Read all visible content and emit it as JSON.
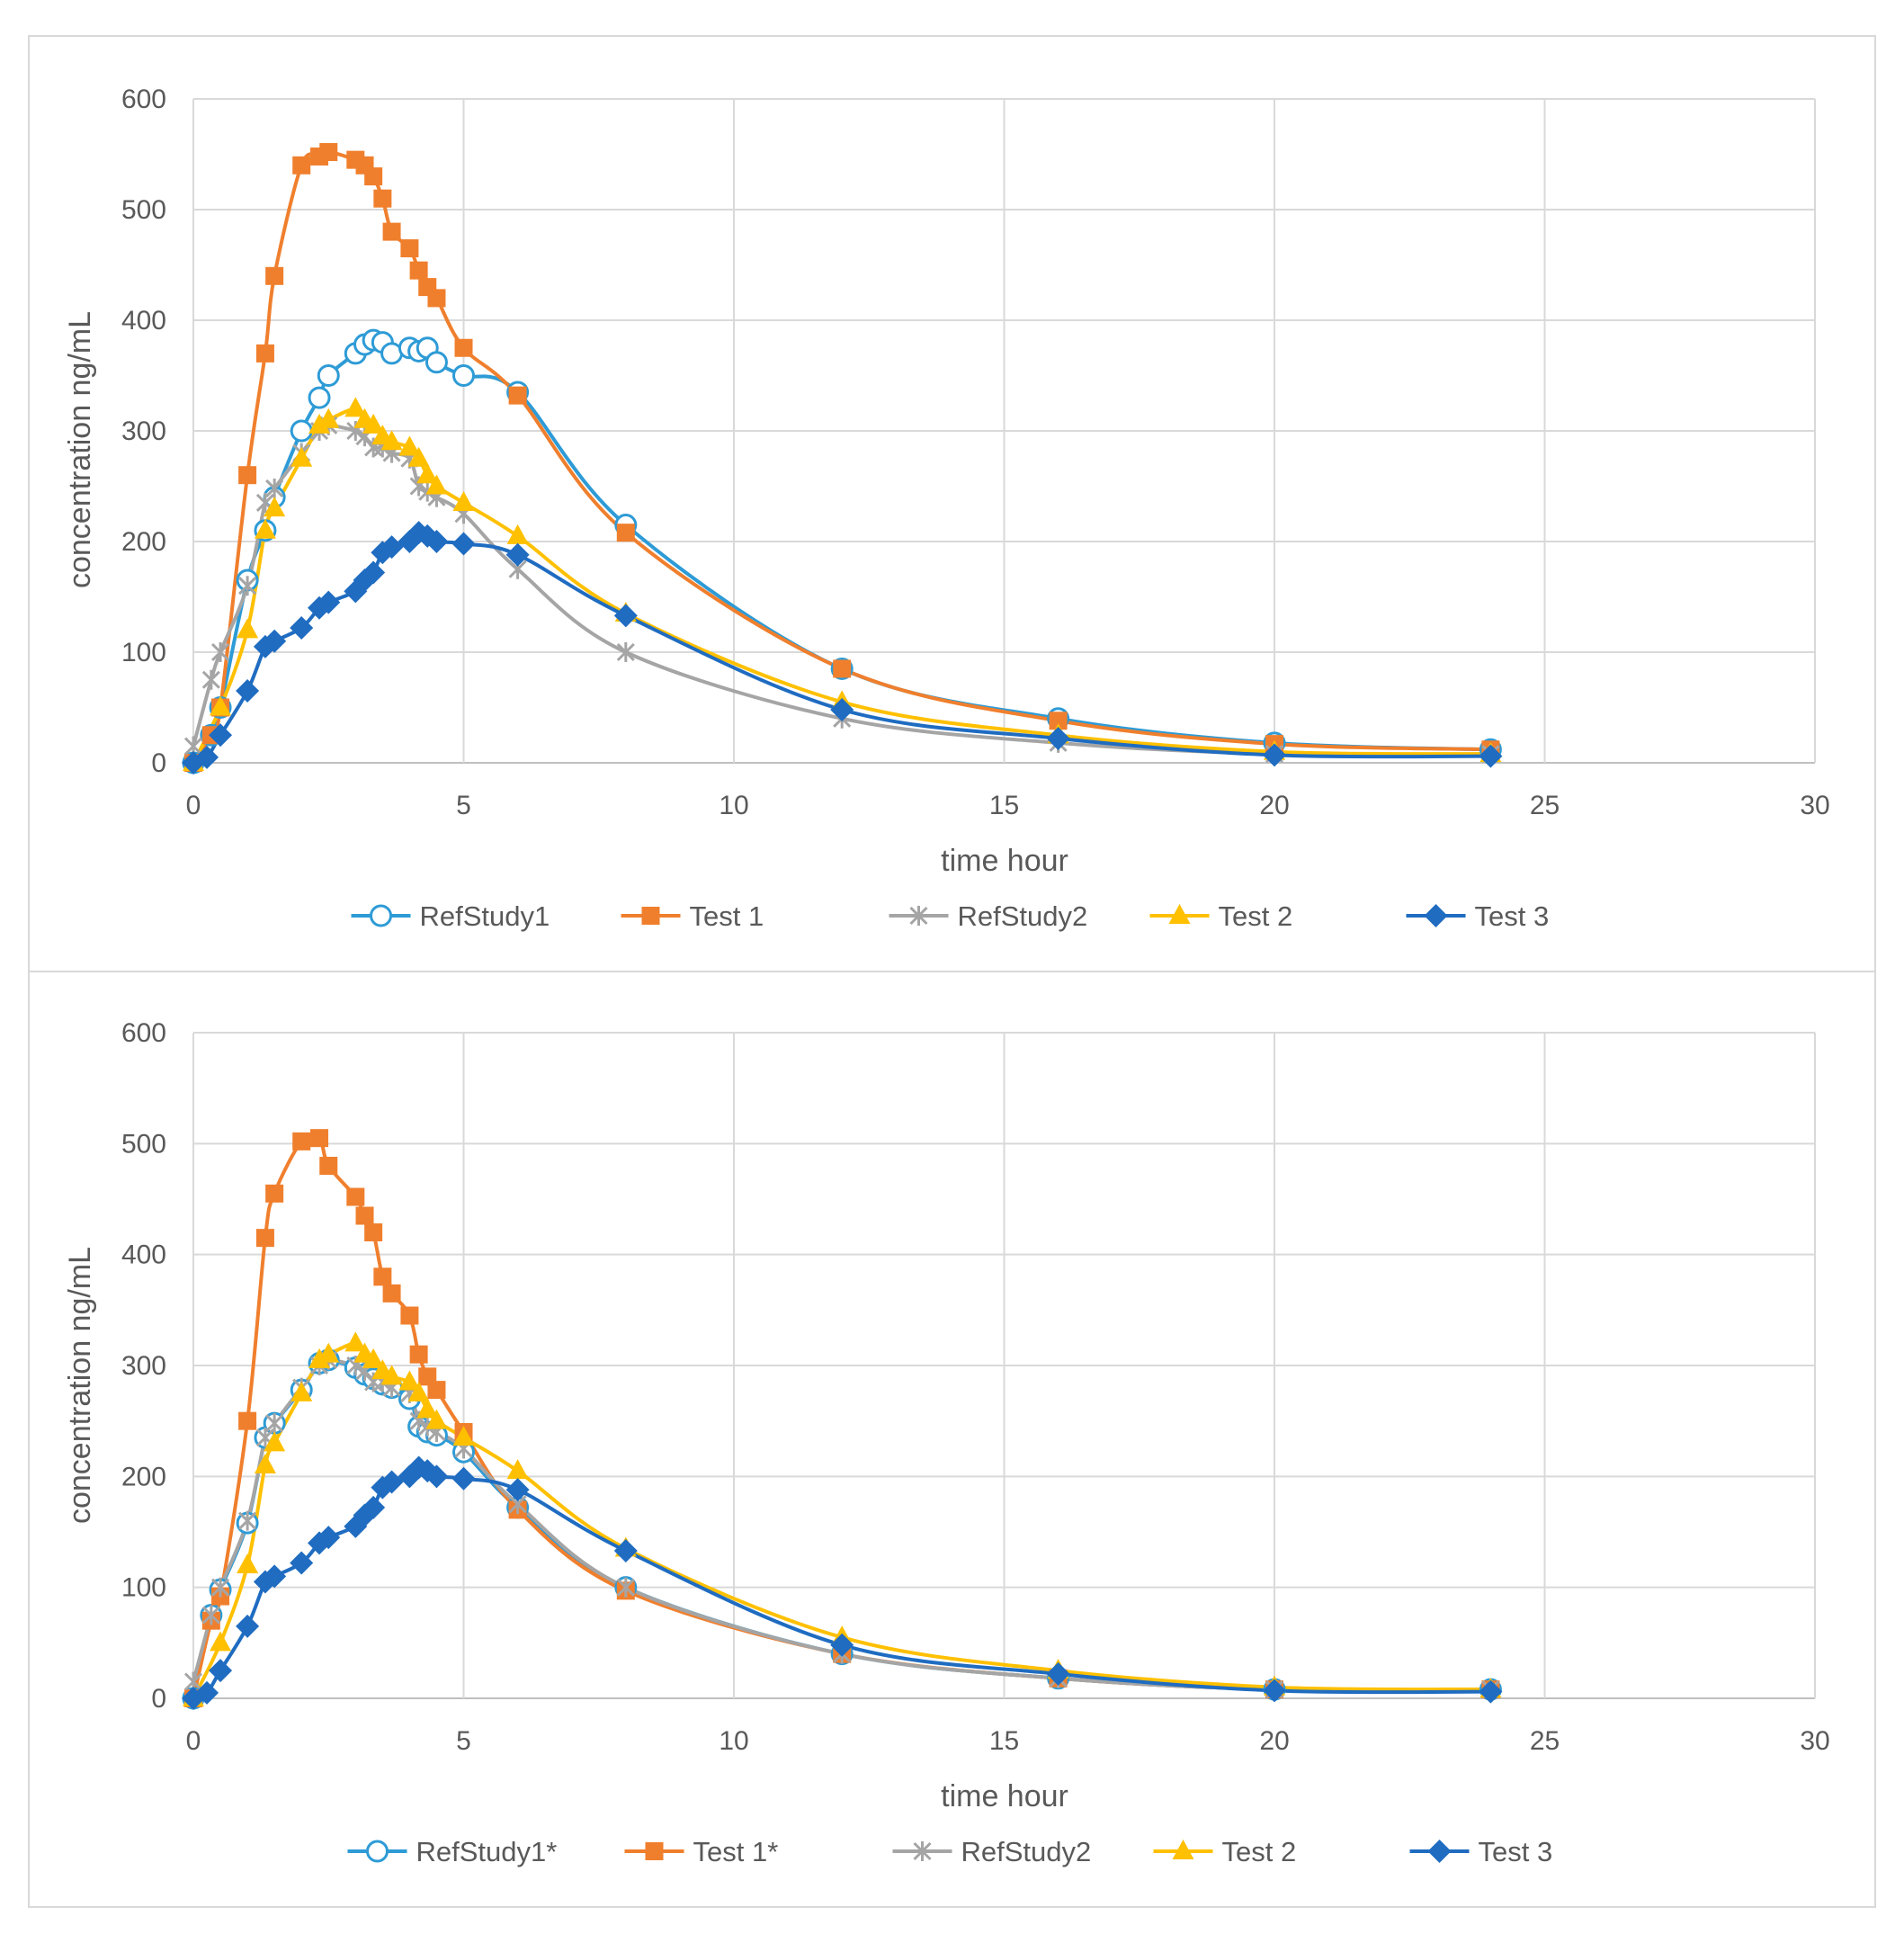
{
  "chart_data": [
    {
      "type": "line",
      "title": "",
      "xlabel": "time hour",
      "ylabel": "concentration ng/mL",
      "xlim": [
        0,
        30
      ],
      "ylim": [
        0,
        600
      ],
      "xticks": [
        0,
        5,
        10,
        15,
        20,
        25,
        30
      ],
      "yticks": [
        0,
        100,
        200,
        300,
        400,
        500,
        600
      ],
      "grid": true,
      "legend_position": "bottom",
      "series": [
        {
          "name": "RefStudy1",
          "color": "#2E9BD6",
          "marker": "circle-open",
          "points": [
            [
              0,
              0
            ],
            [
              0.33,
              25
            ],
            [
              0.5,
              50
            ],
            [
              1,
              165
            ],
            [
              1.33,
              210
            ],
            [
              1.5,
              240
            ],
            [
              2,
              300
            ],
            [
              2.33,
              330
            ],
            [
              2.5,
              350
            ],
            [
              3,
              370
            ],
            [
              3.17,
              378
            ],
            [
              3.33,
              382
            ],
            [
              3.5,
              380
            ],
            [
              3.67,
              370
            ],
            [
              4,
              375
            ],
            [
              4.17,
              372
            ],
            [
              4.33,
              375
            ],
            [
              4.5,
              362
            ],
            [
              5,
              350
            ],
            [
              6,
              335
            ],
            [
              8,
              215
            ],
            [
              12,
              85
            ],
            [
              16,
              40
            ],
            [
              20,
              18
            ],
            [
              24,
              12
            ]
          ]
        },
        {
          "name": "Test 1",
          "color": "#F07F2D",
          "marker": "square",
          "points": [
            [
              0,
              0
            ],
            [
              0.33,
              25
            ],
            [
              0.5,
              50
            ],
            [
              1,
              260
            ],
            [
              1.33,
              370
            ],
            [
              1.5,
              440
            ],
            [
              2,
              540
            ],
            [
              2.33,
              548
            ],
            [
              2.5,
              552
            ],
            [
              3,
              545
            ],
            [
              3.17,
              540
            ],
            [
              3.33,
              530
            ],
            [
              3.5,
              510
            ],
            [
              3.67,
              480
            ],
            [
              4,
              465
            ],
            [
              4.17,
              445
            ],
            [
              4.33,
              430
            ],
            [
              4.5,
              420
            ],
            [
              5,
              375
            ],
            [
              6,
              332
            ],
            [
              8,
              208
            ],
            [
              12,
              85
            ],
            [
              16,
              38
            ],
            [
              20,
              17
            ],
            [
              24,
              12
            ]
          ]
        },
        {
          "name": "RefStudy2",
          "color": "#A5A5A5",
          "marker": "star",
          "points": [
            [
              0,
              15
            ],
            [
              0.33,
              75
            ],
            [
              0.5,
              100
            ],
            [
              1,
              160
            ],
            [
              1.33,
              235
            ],
            [
              1.5,
              248
            ],
            [
              2,
              280
            ],
            [
              2.33,
              300
            ],
            [
              2.5,
              305
            ],
            [
              3,
              300
            ],
            [
              3.17,
              295
            ],
            [
              3.33,
              285
            ],
            [
              3.5,
              285
            ],
            [
              3.67,
              280
            ],
            [
              4,
              275
            ],
            [
              4.17,
              250
            ],
            [
              4.33,
              245
            ],
            [
              4.5,
              240
            ],
            [
              5,
              225
            ],
            [
              6,
              175
            ],
            [
              8,
              100
            ],
            [
              12,
              40
            ],
            [
              16,
              18
            ],
            [
              20,
              8
            ],
            [
              24,
              8
            ]
          ]
        },
        {
          "name": "Test 2",
          "color": "#FFC000",
          "marker": "triangle",
          "points": [
            [
              0,
              0
            ],
            [
              0.5,
              50
            ],
            [
              1,
              120
            ],
            [
              1.33,
              210
            ],
            [
              1.5,
              230
            ],
            [
              2,
              275
            ],
            [
              2.33,
              305
            ],
            [
              2.5,
              310
            ],
            [
              3,
              320
            ],
            [
              3.17,
              310
            ],
            [
              3.33,
              305
            ],
            [
              3.5,
              295
            ],
            [
              3.67,
              290
            ],
            [
              4,
              285
            ],
            [
              4.17,
              275
            ],
            [
              4.33,
              260
            ],
            [
              4.5,
              250
            ],
            [
              5,
              235
            ],
            [
              6,
              205
            ],
            [
              8,
              135
            ],
            [
              12,
              55
            ],
            [
              16,
              25
            ],
            [
              20,
              10
            ],
            [
              24,
              8
            ]
          ]
        },
        {
          "name": "Test 3",
          "color": "#1F6CC1",
          "marker": "diamond",
          "points": [
            [
              0,
              0
            ],
            [
              0.25,
              5
            ],
            [
              0.5,
              25
            ],
            [
              1,
              65
            ],
            [
              1.33,
              105
            ],
            [
              1.5,
              110
            ],
            [
              2,
              122
            ],
            [
              2.33,
              140
            ],
            [
              2.5,
              145
            ],
            [
              3,
              155
            ],
            [
              3.17,
              165
            ],
            [
              3.33,
              172
            ],
            [
              3.5,
              190
            ],
            [
              3.67,
              195
            ],
            [
              4,
              200
            ],
            [
              4.17,
              208
            ],
            [
              4.33,
              205
            ],
            [
              4.5,
              200
            ],
            [
              5,
              198
            ],
            [
              6,
              188
            ],
            [
              8,
              133
            ],
            [
              12,
              48
            ],
            [
              16,
              22
            ],
            [
              20,
              7
            ],
            [
              24,
              6
            ]
          ]
        }
      ]
    },
    {
      "type": "line",
      "title": "",
      "xlabel": "time hour",
      "ylabel": "concentration ng/mL",
      "xlim": [
        0,
        30
      ],
      "ylim": [
        0,
        600
      ],
      "xticks": [
        0,
        5,
        10,
        15,
        20,
        25,
        30
      ],
      "yticks": [
        0,
        100,
        200,
        300,
        400,
        500,
        600
      ],
      "grid": true,
      "legend_position": "bottom",
      "series": [
        {
          "name": "RefStudy1*",
          "color": "#2E9BD6",
          "marker": "circle-open",
          "points": [
            [
              0,
              0
            ],
            [
              0.33,
              75
            ],
            [
              0.5,
              98
            ],
            [
              1,
              158
            ],
            [
              1.33,
              235
            ],
            [
              1.5,
              248
            ],
            [
              2,
              278
            ],
            [
              2.33,
              302
            ],
            [
              2.5,
              305
            ],
            [
              3,
              298
            ],
            [
              3.17,
              292
            ],
            [
              3.33,
              288
            ],
            [
              3.5,
              283
            ],
            [
              3.67,
              280
            ],
            [
              4,
              270
            ],
            [
              4.17,
              245
            ],
            [
              4.33,
              240
            ],
            [
              4.5,
              237
            ],
            [
              5,
              222
            ],
            [
              6,
              172
            ],
            [
              8,
              100
            ],
            [
              12,
              40
            ],
            [
              16,
              18
            ],
            [
              20,
              8
            ],
            [
              24,
              8
            ]
          ]
        },
        {
          "name": "Test 1*",
          "color": "#F07F2D",
          "marker": "square",
          "points": [
            [
              0,
              0
            ],
            [
              0.33,
              70
            ],
            [
              0.5,
              92
            ],
            [
              1,
              250
            ],
            [
              1.33,
              415
            ],
            [
              1.5,
              455
            ],
            [
              2,
              502
            ],
            [
              2.33,
              505
            ],
            [
              2.5,
              480
            ],
            [
              3,
              452
            ],
            [
              3.17,
              435
            ],
            [
              3.33,
              420
            ],
            [
              3.5,
              380
            ],
            [
              3.67,
              365
            ],
            [
              4,
              345
            ],
            [
              4.17,
              310
            ],
            [
              4.33,
              290
            ],
            [
              4.5,
              278
            ],
            [
              5,
              240
            ],
            [
              6,
              170
            ],
            [
              8,
              97
            ],
            [
              12,
              40
            ],
            [
              16,
              18
            ],
            [
              20,
              8
            ],
            [
              24,
              8
            ]
          ]
        },
        {
          "name": "RefStudy2",
          "color": "#A5A5A5",
          "marker": "star",
          "points": [
            [
              0,
              15
            ],
            [
              0.33,
              75
            ],
            [
              0.5,
              100
            ],
            [
              1,
              160
            ],
            [
              1.33,
              235
            ],
            [
              1.5,
              248
            ],
            [
              2,
              280
            ],
            [
              2.33,
              300
            ],
            [
              2.5,
              305
            ],
            [
              3,
              300
            ],
            [
              3.17,
              295
            ],
            [
              3.33,
              285
            ],
            [
              3.5,
              285
            ],
            [
              3.67,
              280
            ],
            [
              4,
              275
            ],
            [
              4.17,
              250
            ],
            [
              4.33,
              245
            ],
            [
              4.5,
              240
            ],
            [
              5,
              225
            ],
            [
              6,
              175
            ],
            [
              8,
              100
            ],
            [
              12,
              40
            ],
            [
              16,
              18
            ],
            [
              20,
              8
            ],
            [
              24,
              8
            ]
          ]
        },
        {
          "name": "Test 2",
          "color": "#FFC000",
          "marker": "triangle",
          "points": [
            [
              0,
              0
            ],
            [
              0.5,
              50
            ],
            [
              1,
              120
            ],
            [
              1.33,
              210
            ],
            [
              1.5,
              230
            ],
            [
              2,
              275
            ],
            [
              2.33,
              305
            ],
            [
              2.5,
              310
            ],
            [
              3,
              320
            ],
            [
              3.17,
              310
            ],
            [
              3.33,
              305
            ],
            [
              3.5,
              295
            ],
            [
              3.67,
              290
            ],
            [
              4,
              285
            ],
            [
              4.17,
              275
            ],
            [
              4.33,
              260
            ],
            [
              4.5,
              250
            ],
            [
              5,
              235
            ],
            [
              6,
              205
            ],
            [
              8,
              135
            ],
            [
              12,
              55
            ],
            [
              16,
              25
            ],
            [
              20,
              10
            ],
            [
              24,
              8
            ]
          ]
        },
        {
          "name": "Test 3",
          "color": "#1F6CC1",
          "marker": "diamond",
          "points": [
            [
              0,
              0
            ],
            [
              0.25,
              5
            ],
            [
              0.5,
              25
            ],
            [
              1,
              65
            ],
            [
              1.33,
              105
            ],
            [
              1.5,
              110
            ],
            [
              2,
              122
            ],
            [
              2.33,
              140
            ],
            [
              2.5,
              145
            ],
            [
              3,
              155
            ],
            [
              3.17,
              165
            ],
            [
              3.33,
              172
            ],
            [
              3.5,
              190
            ],
            [
              3.67,
              195
            ],
            [
              4,
              200
            ],
            [
              4.17,
              208
            ],
            [
              4.33,
              205
            ],
            [
              4.5,
              200
            ],
            [
              5,
              198
            ],
            [
              6,
              188
            ],
            [
              8,
              133
            ],
            [
              12,
              48
            ],
            [
              16,
              22
            ],
            [
              20,
              7
            ],
            [
              24,
              6
            ]
          ]
        }
      ]
    }
  ]
}
